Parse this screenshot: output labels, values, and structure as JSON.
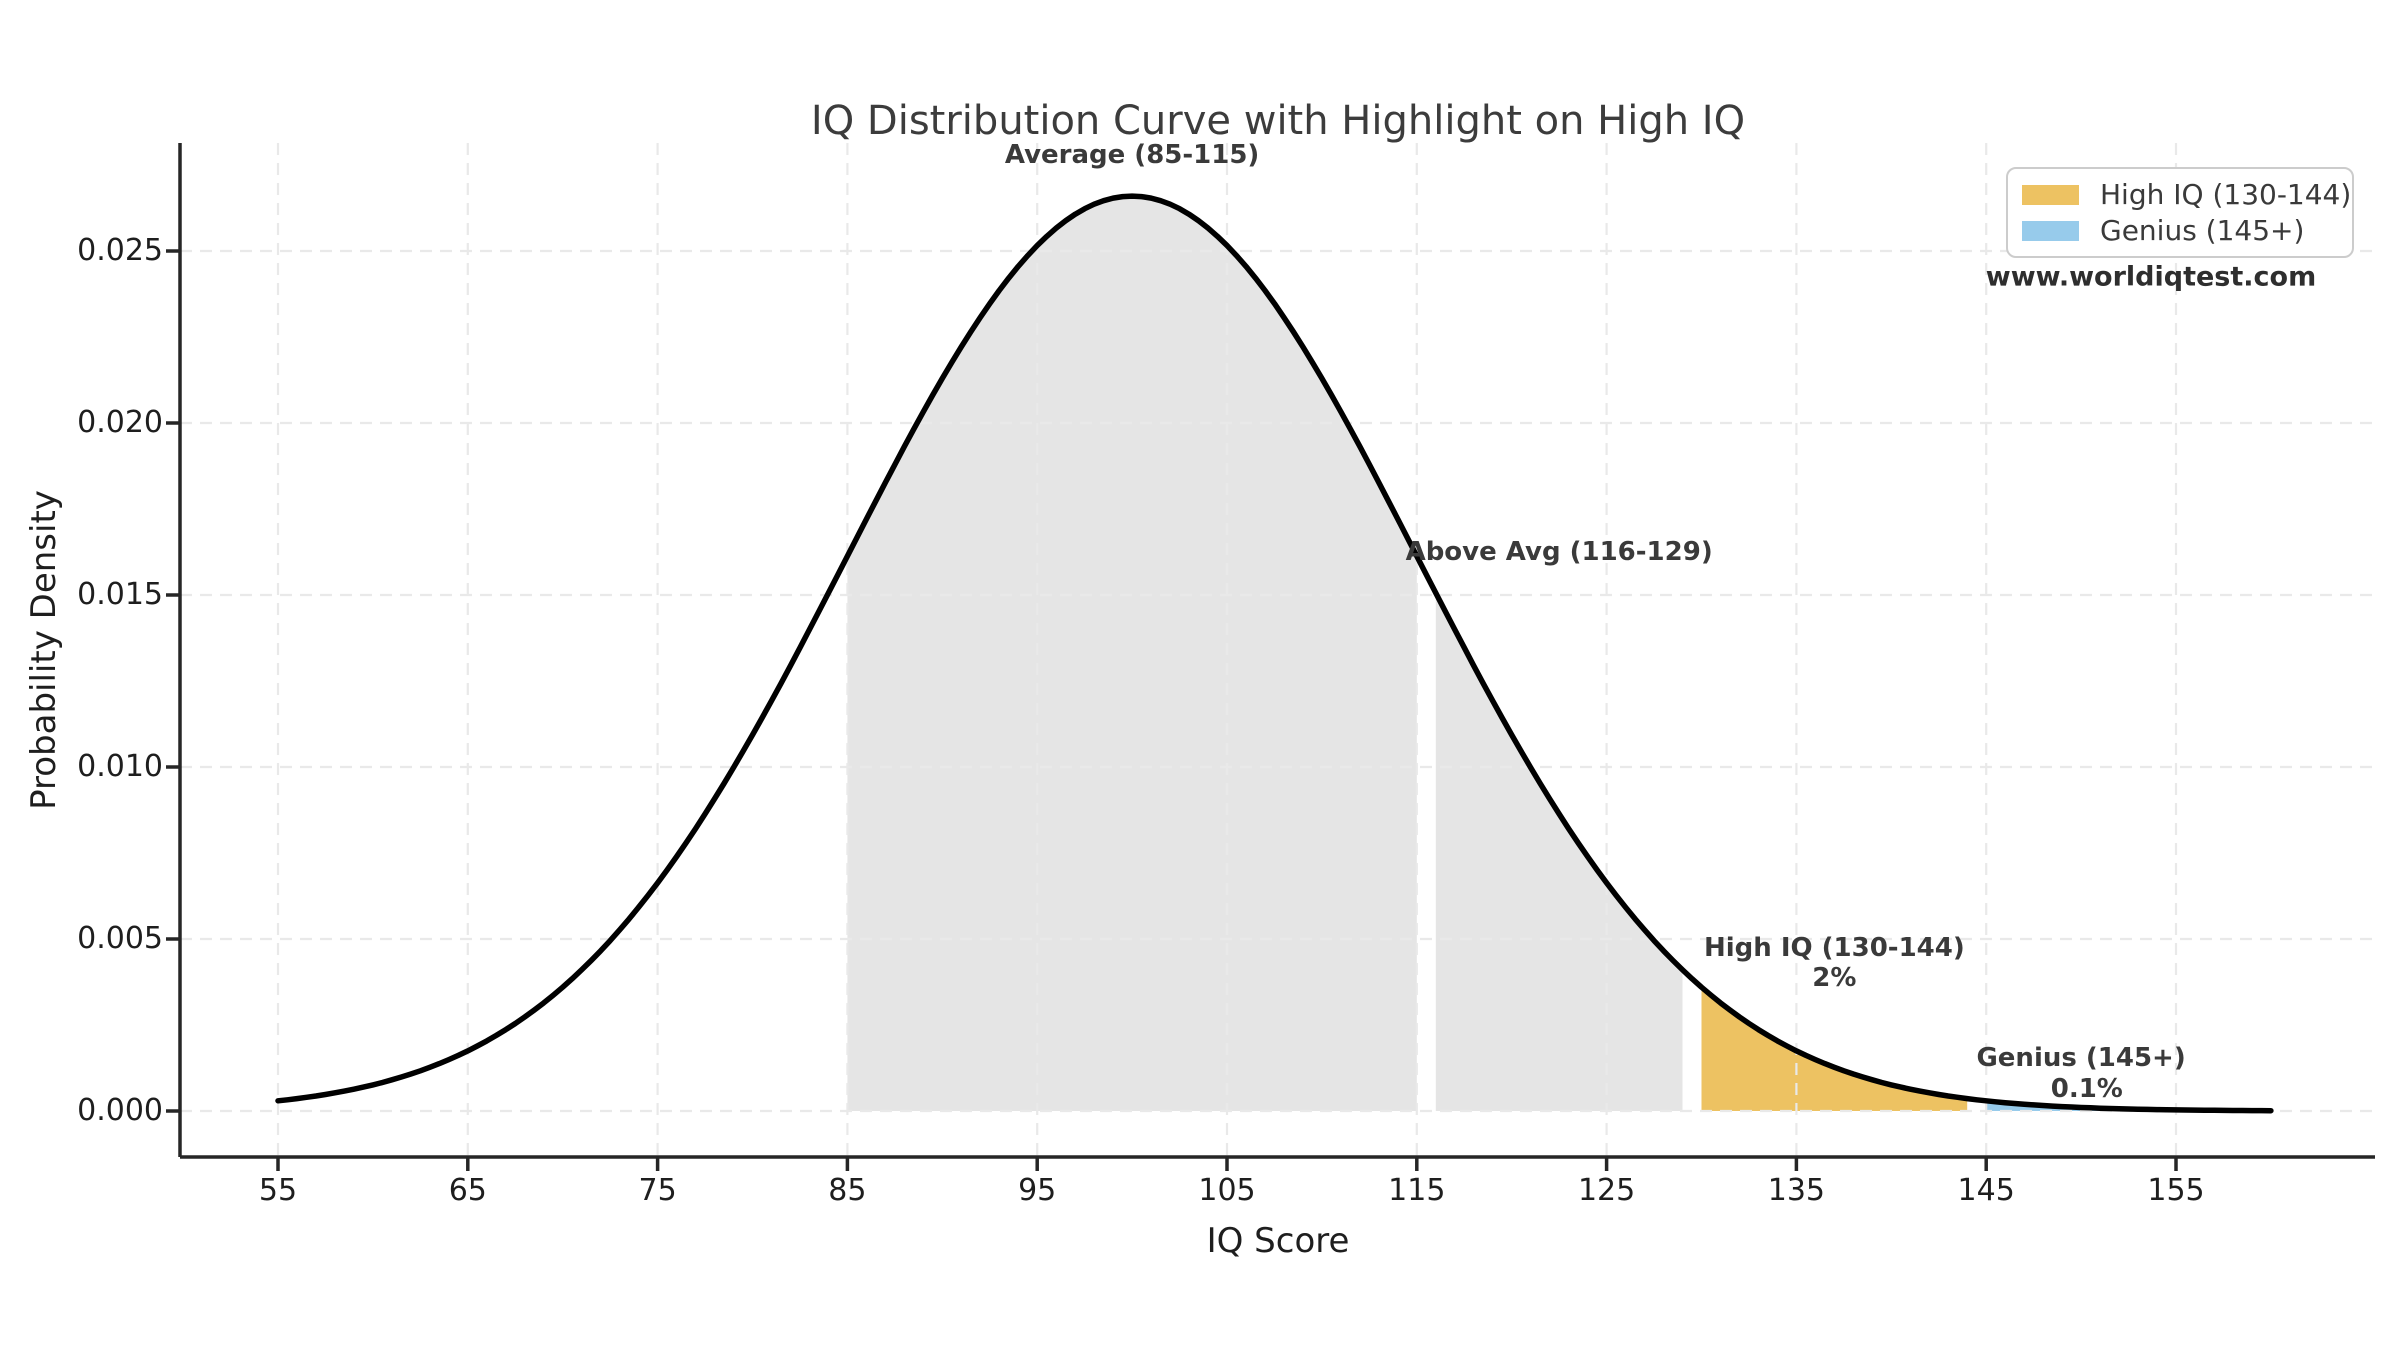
{
  "chart_data": {
    "type": "area",
    "title": "IQ Distribution Curve with Highlight on High IQ",
    "xlabel": "IQ Score",
    "ylabel": "Probability Density",
    "watermark": "www.worldiqtest.com",
    "grid": true,
    "legend_position": "upper-right",
    "line_color": "#000000",
    "distribution": {
      "mean": 100,
      "std": 15,
      "curve_start": 55,
      "curve_end": 160
    },
    "x_ticks": [
      55,
      65,
      75,
      85,
      95,
      105,
      115,
      125,
      135,
      145,
      155
    ],
    "y_ticks": [
      "0.000",
      "0.005",
      "0.010",
      "0.015",
      "0.020",
      "0.025"
    ],
    "y_tick_values": [
      0,
      0.005,
      0.01,
      0.015,
      0.02,
      0.025
    ],
    "xlim": [
      49.8,
      165.5
    ],
    "ylim": [
      -0.00134,
      0.0293
    ],
    "regions": [
      {
        "name": "average",
        "from": 85,
        "to": 115,
        "color": "#e5e5e5"
      },
      {
        "name": "above-average",
        "from": 116,
        "to": 129,
        "color": "#e5e5e5"
      },
      {
        "name": "high-iq",
        "from": 130,
        "to": 144,
        "color": "#edc262"
      },
      {
        "name": "genius",
        "from": 145,
        "to": 160,
        "color": "#97cbeb"
      }
    ],
    "annotations": [
      {
        "text": "Average (85-115)",
        "x": 100,
        "y": 0.02779
      },
      {
        "text": "Above Avg (116-129)",
        "x": 122.5,
        "y": 0.01625
      },
      {
        "text": "High IQ (130-144)",
        "x": 137,
        "y": 0.00474
      },
      {
        "text": "2%",
        "x": 137,
        "y": 0.00387
      },
      {
        "text": "Genius (145+)",
        "x": 150,
        "y": 0.00154
      },
      {
        "text": "0.1%",
        "x": 150.3,
        "y": 0.00064
      }
    ],
    "legend": [
      {
        "name": "high-iq",
        "label": "High IQ (130-144)",
        "color": "#edc262"
      },
      {
        "name": "genius",
        "label": "Genius (145+)",
        "color": "#97cbeb"
      }
    ]
  }
}
